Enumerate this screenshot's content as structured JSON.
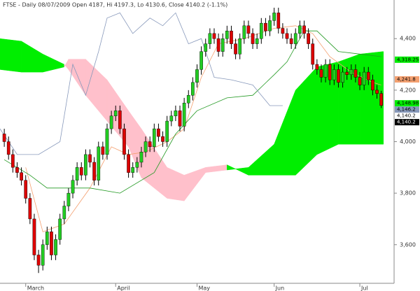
{
  "chart_data": {
    "type": "candlestick",
    "title": "FTSE - Daily 08/07/2009 Open 4187, Hi 4197.3, Lo 4130.6, Close 4140.2 (-1.1%)",
    "up_color": "#22cc22",
    "down_color": "#dd0000",
    "x": [
      0,
      1,
      2,
      3,
      4,
      5,
      6,
      7,
      8,
      9,
      10,
      11,
      12,
      13,
      14,
      15,
      16,
      17,
      18,
      19,
      20,
      21,
      22,
      23,
      24,
      25,
      26,
      27,
      28,
      29,
      30,
      31,
      32,
      33,
      34,
      35,
      36,
      37,
      38,
      39,
      40,
      41,
      42,
      43,
      44,
      45,
      46,
      47,
      48,
      49,
      50,
      51,
      52,
      53,
      54,
      55,
      56,
      57,
      58,
      59,
      60,
      61,
      62,
      63,
      64,
      65,
      66,
      67,
      68,
      69,
      70,
      71,
      72,
      73,
      74,
      75,
      76,
      77,
      78,
      79,
      80,
      81,
      82,
      83,
      84,
      85,
      86,
      87,
      88
    ],
    "open": [
      4030,
      4000,
      3950,
      3900,
      3880,
      3850,
      3780,
      3700,
      3560,
      3520,
      3600,
      3650,
      3560,
      3620,
      3700,
      3750,
      3800,
      3850,
      3900,
      3870,
      3950,
      3920,
      3850,
      3980,
      3950,
      4050,
      4100,
      4120,
      4050,
      3950,
      3880,
      3900,
      3920,
      3960,
      4000,
      3980,
      4050,
      4020,
      4000,
      4080,
      4100,
      4120,
      4060,
      4150,
      4180,
      4230,
      4280,
      4350,
      4380,
      4420,
      4400,
      4350,
      4400,
      4430,
      4380,
      4340,
      4400,
      4450,
      4420,
      4380,
      4400,
      4460,
      4430,
      4470,
      4500,
      4440,
      4420,
      4400,
      4380,
      4420,
      4450,
      4420,
      4380,
      4300,
      4280,
      4250,
      4300,
      4240,
      4280,
      4230,
      4270,
      4260,
      4280,
      4250,
      4220,
      4270,
      4240,
      4200,
      4187
    ],
    "high": [
      4050,
      4020,
      3970,
      3920,
      3900,
      3870,
      3800,
      3720,
      3580,
      3620,
      3670,
      3670,
      3640,
      3720,
      3770,
      3820,
      3870,
      3920,
      3920,
      3970,
      3970,
      3940,
      4000,
      4000,
      4070,
      4120,
      4140,
      4140,
      4070,
      3970,
      3920,
      3940,
      3980,
      4020,
      4020,
      4070,
      4070,
      4040,
      4100,
      4120,
      4140,
      4140,
      4170,
      4200,
      4250,
      4300,
      4370,
      4400,
      4440,
      4440,
      4420,
      4420,
      4450,
      4450,
      4400,
      4420,
      4470,
      4470,
      4440,
      4420,
      4480,
      4480,
      4490,
      4520,
      4520,
      4460,
      4440,
      4420,
      4440,
      4470,
      4470,
      4440,
      4400,
      4320,
      4300,
      4320,
      4320,
      4300,
      4300,
      4290,
      4290,
      4300,
      4300,
      4270,
      4290,
      4290,
      4260,
      4220,
      4197.3
    ],
    "low": [
      3980,
      3930,
      3880,
      3860,
      3830,
      3760,
      3680,
      3540,
      3490,
      3500,
      3580,
      3540,
      3540,
      3600,
      3680,
      3730,
      3780,
      3830,
      3850,
      3850,
      3900,
      3830,
      3830,
      3930,
      3930,
      4030,
      4080,
      4030,
      3930,
      3860,
      3860,
      3880,
      3900,
      3940,
      3960,
      3960,
      4000,
      3980,
      3980,
      4060,
      4080,
      4040,
      4040,
      4130,
      4160,
      4210,
      4260,
      4330,
      4360,
      4380,
      4330,
      4330,
      4380,
      4360,
      4320,
      4320,
      4380,
      4400,
      4360,
      4360,
      4380,
      4410,
      4410,
      4450,
      4420,
      4400,
      4380,
      4360,
      4360,
      4400,
      4400,
      4360,
      4280,
      4260,
      4230,
      4230,
      4220,
      4220,
      4210,
      4210,
      4240,
      4240,
      4230,
      4200,
      4200,
      4220,
      4180,
      4167,
      4130.6
    ],
    "close": [
      4000,
      3950,
      3900,
      3880,
      3850,
      3780,
      3700,
      3560,
      3520,
      3600,
      3650,
      3560,
      3620,
      3700,
      3750,
      3800,
      3850,
      3900,
      3870,
      3950,
      3920,
      3850,
      3980,
      3950,
      4050,
      4100,
      4120,
      4050,
      3950,
      3880,
      3900,
      3920,
      3960,
      4000,
      3980,
      4050,
      4020,
      4000,
      4080,
      4100,
      4120,
      4060,
      4150,
      4180,
      4230,
      4280,
      4350,
      4380,
      4420,
      4400,
      4350,
      4400,
      4430,
      4380,
      4340,
      4400,
      4450,
      4420,
      4380,
      4400,
      4460,
      4430,
      4470,
      4500,
      4440,
      4420,
      4400,
      4380,
      4420,
      4450,
      4420,
      4380,
      4300,
      4280,
      4250,
      4300,
      4240,
      4280,
      4230,
      4270,
      4260,
      4280,
      4250,
      4220,
      4270,
      4240,
      4200,
      4187,
      4140.2
    ],
    "cloud": {
      "bull_color": "#00ee00",
      "bear_color": "#ffc0cb",
      "x": [
        -1,
        4,
        9,
        14,
        15,
        19,
        24,
        29,
        32,
        38,
        42,
        47,
        52,
        57,
        63,
        68,
        73,
        78,
        83,
        88.5
      ],
      "span_a": [
        4400,
        4390,
        4340,
        4300,
        4280,
        4180,
        4080,
        3980,
        3860,
        3780,
        3770,
        3880,
        3890,
        3900,
        3990,
        4200,
        4290,
        4310,
        4340,
        4350
      ],
      "span_b": [
        4280,
        4270,
        4270,
        4290,
        4320,
        4320,
        4240,
        4120,
        4050,
        3900,
        3870,
        3900,
        3910,
        3870,
        3870,
        3870,
        3950,
        3990,
        3990,
        3990
      ]
    },
    "lines": [
      {
        "color": "#f4a070",
        "x": [
          5,
          9,
          14,
          20,
          25,
          29,
          33,
          38,
          42,
          46,
          50,
          56,
          63,
          68,
          72,
          76,
          81,
          86,
          88
        ],
        "values": [
          3900,
          3650,
          3680,
          3820,
          3980,
          3950,
          3960,
          4000,
          4050,
          4250,
          4380,
          4400,
          4440,
          4450,
          4420,
          4330,
          4270,
          4230,
          4220
        ]
      },
      {
        "color": "#229922",
        "x": [
          0,
          6,
          10,
          20,
          27,
          35,
          40,
          45,
          52,
          58,
          63,
          66,
          70,
          73,
          78,
          88
        ],
        "values": [
          3930,
          3870,
          3820,
          3820,
          3800,
          3880,
          4030,
          4120,
          4170,
          4180,
          4260,
          4310,
          4430,
          4430,
          4350,
          4330
        ]
      },
      {
        "color": "#8899bb",
        "x": [
          -1,
          3,
          8,
          13,
          16,
          19,
          22,
          24,
          27,
          30,
          34,
          37,
          40,
          43,
          46,
          49,
          53,
          58,
          62,
          65
        ],
        "values": [
          4050,
          3950,
          3950,
          4000,
          4300,
          4180,
          4350,
          4480,
          4500,
          4420,
          4480,
          4450,
          4500,
          4380,
          4400,
          4250,
          4240,
          4220,
          4140,
          4140
        ]
      }
    ],
    "xlim": [
      -1,
      91
    ],
    "xticks": [
      {
        "value": 5,
        "label": "March"
      },
      {
        "value": 26,
        "label": "April"
      },
      {
        "value": 45,
        "label": "May"
      },
      {
        "value": 63,
        "label": "Jun"
      },
      {
        "value": 83,
        "label": "Jul"
      }
    ],
    "ylim": [
      3450,
      4550
    ],
    "yticks": [
      {
        "value": 3600,
        "label": "3,600"
      },
      {
        "value": 3800,
        "label": "3,800"
      },
      {
        "value": 4000,
        "label": "4,000"
      },
      {
        "value": 4200,
        "label": "4,200"
      },
      {
        "value": 4400,
        "label": "4,400"
      }
    ],
    "price_labels": [
      {
        "value": 4318.25,
        "label": "4,318.25",
        "color": "#00ee00"
      },
      {
        "value": 4241.8,
        "label": "4,241.8",
        "color": "#f4a070"
      },
      {
        "value": 4148.98,
        "label": "4,148.98",
        "color": "#00ee00"
      },
      {
        "value": 4140.2,
        "label": "4,140.2",
        "color": "#ffffff"
      },
      {
        "value": 4140.2,
        "label": "4,140.2",
        "color": "#000000"
      },
      {
        "value": 4146.2,
        "label": "4,146.2",
        "color": "#8899bb"
      }
    ]
  }
}
